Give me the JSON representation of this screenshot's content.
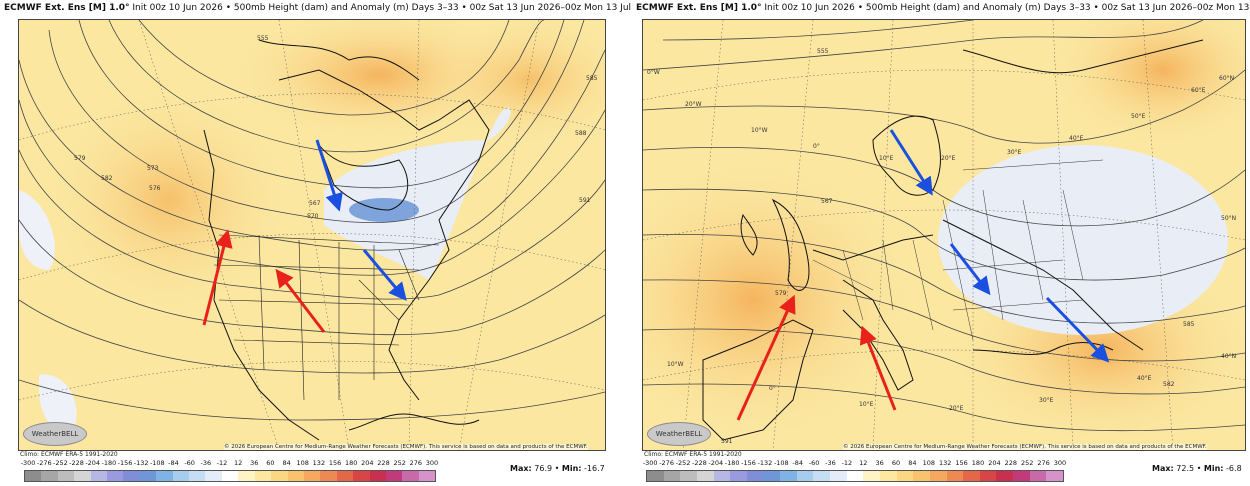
{
  "left": {
    "title_bold": "ECMWF Ext. Ens [M] 1.0°",
    "title_rest": "Init 00z 10 Jun 2026 • 500mb Height (dam) and Anomaly (m)  Days 3–33 • 00z Sat 13 Jun 2026–00z Mon 13 Jul 2026",
    "contour_labels": [
      "555",
      "573",
      "579",
      "582",
      "576",
      "567",
      "570",
      "585",
      "588",
      "591"
    ],
    "logo": "WeatherBELL",
    "climo": "Climo: ECMWF ERA-5 1991-2020",
    "credit": "© 2026 European Centre for Medium-Range Weather Forecasts (ECMWF). This service is based on data and products of the ECMWF.",
    "max_label": "Max:",
    "max_value": "76.9",
    "min_label": "Min:",
    "min_value": "-16.7"
  },
  "right": {
    "title_bold": "ECMWF Ext. Ens [M] 1.0°",
    "title_rest": "Init 00z 10 Jun 2026 • 500mb Height (dam) and Anomaly (m)  Days 3–33 • 00z Sat 13 Jun 2026–00z Mon 13 Jul 2026",
    "contour_labels": [
      "555",
      "567",
      "579",
      "585",
      "582",
      "591"
    ],
    "grid_labels": [
      "0°W",
      "20°W",
      "10°W",
      "0°",
      "10°E",
      "20°E",
      "30°E",
      "40°E",
      "50°E",
      "60°E",
      "60°N",
      "50°N",
      "40°N",
      "10°W",
      "0°",
      "10°E",
      "20°E",
      "30°E",
      "40°E"
    ],
    "logo": "WeatherBELL",
    "climo": "Climo: ECMWF ERA-5 1991-2020",
    "credit": "© 2026 European Centre for Medium-Range Weather Forecasts (ECMWF). This service is based on data and products of the ECMWF.",
    "max_label": "Max:",
    "max_value": "72.5",
    "min_label": "Min:",
    "min_value": "-6.8"
  },
  "colorbar": {
    "ticks": [
      "-300",
      "-276",
      "-252",
      "-228",
      "-204",
      "-180",
      "-156",
      "-132",
      "-108",
      "-84",
      "-60",
      "-36",
      "-12",
      "12",
      "36",
      "60",
      "84",
      "108",
      "132",
      "156",
      "180",
      "204",
      "228",
      "252",
      "276",
      "300"
    ],
    "colors": [
      "#8d8d8d",
      "#a6a6a6",
      "#bdbdbd",
      "#d5d5d5",
      "#b7b7e6",
      "#9a9ae0",
      "#7e8ed8",
      "#6f96d6",
      "#7fb2e5",
      "#a6cdee",
      "#c6def3",
      "#e3ecf8",
      "#ffffff",
      "#fff3c6",
      "#fde7a1",
      "#fcd781",
      "#f9c36d",
      "#f6a95e",
      "#ef8952",
      "#e4674a",
      "#d74547",
      "#c93050",
      "#c33a7c",
      "#c86aa8",
      "#d494cb",
      "#e2bfe4"
    ]
  },
  "arrows": {
    "red_color": "#e8221b",
    "blue_color": "#1a4fe0"
  }
}
